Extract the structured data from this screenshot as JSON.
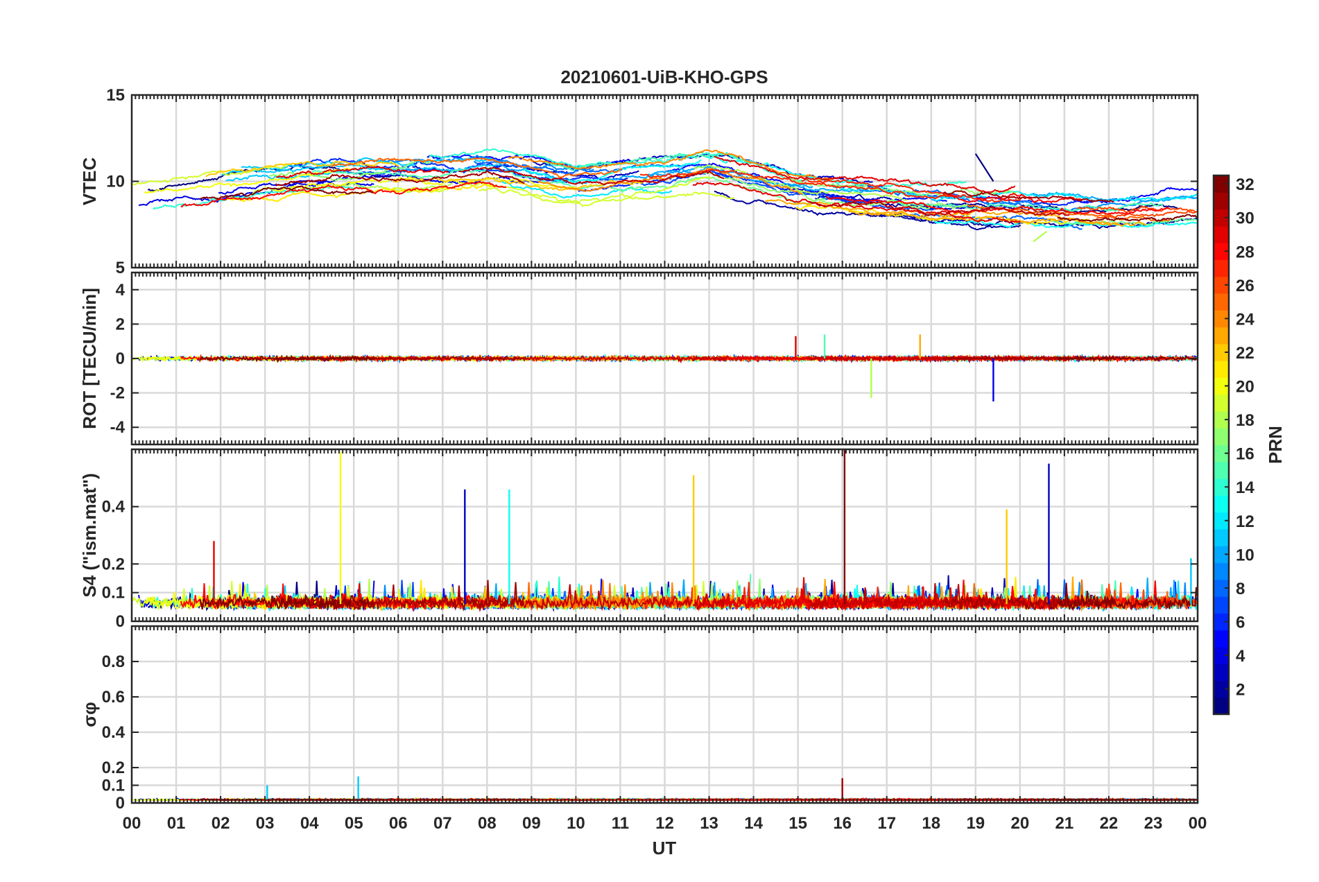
{
  "chart_data": {
    "type": "line",
    "title": "20210601-UiB-KHO-GPS",
    "xlabel": "UT",
    "x_tick_labels": [
      "00",
      "01",
      "02",
      "03",
      "04",
      "05",
      "06",
      "07",
      "08",
      "09",
      "10",
      "11",
      "12",
      "13",
      "14",
      "15",
      "16",
      "17",
      "18",
      "19",
      "20",
      "21",
      "22",
      "23",
      "00"
    ],
    "xlim": [
      0,
      24
    ],
    "panels": [
      {
        "id": "vtec",
        "ylabel": "VTEC",
        "ylim": [
          5,
          15
        ],
        "y_ticks": [
          5,
          10,
          15
        ],
        "y_tick_labels": [
          "5",
          "10",
          "15"
        ],
        "grid": true,
        "baseline_trend": [
          [
            0,
            9.0
          ],
          [
            2,
            9.8
          ],
          [
            4,
            10.3
          ],
          [
            6,
            10.4
          ],
          [
            8,
            10.6
          ],
          [
            10,
            9.8
          ],
          [
            12,
            10.2
          ],
          [
            13,
            10.6
          ],
          [
            15,
            9.3
          ],
          [
            18,
            8.8
          ],
          [
            20,
            8.6
          ],
          [
            22,
            8.3
          ],
          [
            24,
            8.6
          ]
        ],
        "features": [
          {
            "prn": 1,
            "x": [
              19.0,
              19.4
            ],
            "y": [
              11.6,
              10.0
            ]
          },
          {
            "prn": 18,
            "x": [
              20.3,
              20.6
            ],
            "y": [
              6.5,
              7.1
            ]
          }
        ]
      },
      {
        "id": "rot",
        "ylabel": "ROT [TECU/min]",
        "ylim": [
          -5,
          5
        ],
        "y_ticks": [
          -4,
          -2,
          0,
          2,
          4
        ],
        "y_tick_labels": [
          "-4",
          "-2",
          "0",
          "2",
          "4"
        ],
        "grid": true,
        "spikes": [
          {
            "prn": 18,
            "x": 16.65,
            "y": -2.3
          },
          {
            "prn": 4,
            "x": 19.4,
            "y": -2.5
          },
          {
            "prn": 29,
            "x": 14.95,
            "y": 1.3
          },
          {
            "prn": 23,
            "x": 17.75,
            "y": 1.4
          },
          {
            "prn": 15,
            "x": 15.6,
            "y": 1.4
          }
        ]
      },
      {
        "id": "s4",
        "ylabel": "S4 (\"ism.mat\")",
        "ylim": [
          0,
          0.6
        ],
        "y_ticks": [
          0,
          0.1,
          0.2,
          0.4
        ],
        "y_tick_labels": [
          "0",
          "0.1",
          "0.2",
          "0.4"
        ],
        "grid": true,
        "spikes": [
          {
            "prn": 20,
            "x": 4.7,
            "y": 0.59
          },
          {
            "prn": 3,
            "x": 7.5,
            "y": 0.46
          },
          {
            "prn": 13,
            "x": 8.5,
            "y": 0.46
          },
          {
            "prn": 22,
            "x": 12.65,
            "y": 0.51
          },
          {
            "prn": 32,
            "x": 16.05,
            "y": 0.6
          },
          {
            "prn": 22,
            "x": 19.7,
            "y": 0.39
          },
          {
            "prn": 3,
            "x": 20.65,
            "y": 0.55
          },
          {
            "prn": 29,
            "x": 1.85,
            "y": 0.28
          },
          {
            "prn": 11,
            "x": 23.85,
            "y": 0.22
          }
        ]
      },
      {
        "id": "sigma_phi",
        "ylabel": "σφ",
        "ylim": [
          0,
          1
        ],
        "y_ticks": [
          0,
          0.1,
          0.2,
          0.4,
          0.6,
          0.8
        ],
        "y_tick_labels": [
          "0",
          "0.1",
          "0.2",
          "0.4",
          "0.6",
          "0.8"
        ],
        "grid": true,
        "spikes": [
          {
            "prn": 11,
            "x": 5.1,
            "y": 0.15
          },
          {
            "prn": 11,
            "x": 3.05,
            "y": 0.1
          },
          {
            "prn": 31,
            "x": 16.0,
            "y": 0.14
          }
        ]
      }
    ],
    "series": {
      "description": "one trace per GPS satellite, colour by PRN",
      "prn_range": [
        1,
        32
      ]
    },
    "colorbar": {
      "label": "PRN",
      "colormap": "jet",
      "range": [
        1,
        32
      ],
      "ticks": [
        2,
        4,
        6,
        8,
        10,
        12,
        14,
        16,
        18,
        20,
        22,
        24,
        26,
        28,
        30,
        32
      ],
      "tick_labels": [
        "2",
        "4",
        "6",
        "8",
        "10",
        "12",
        "14",
        "16",
        "18",
        "20",
        "22",
        "24",
        "26",
        "28",
        "30",
        "32"
      ]
    }
  }
}
